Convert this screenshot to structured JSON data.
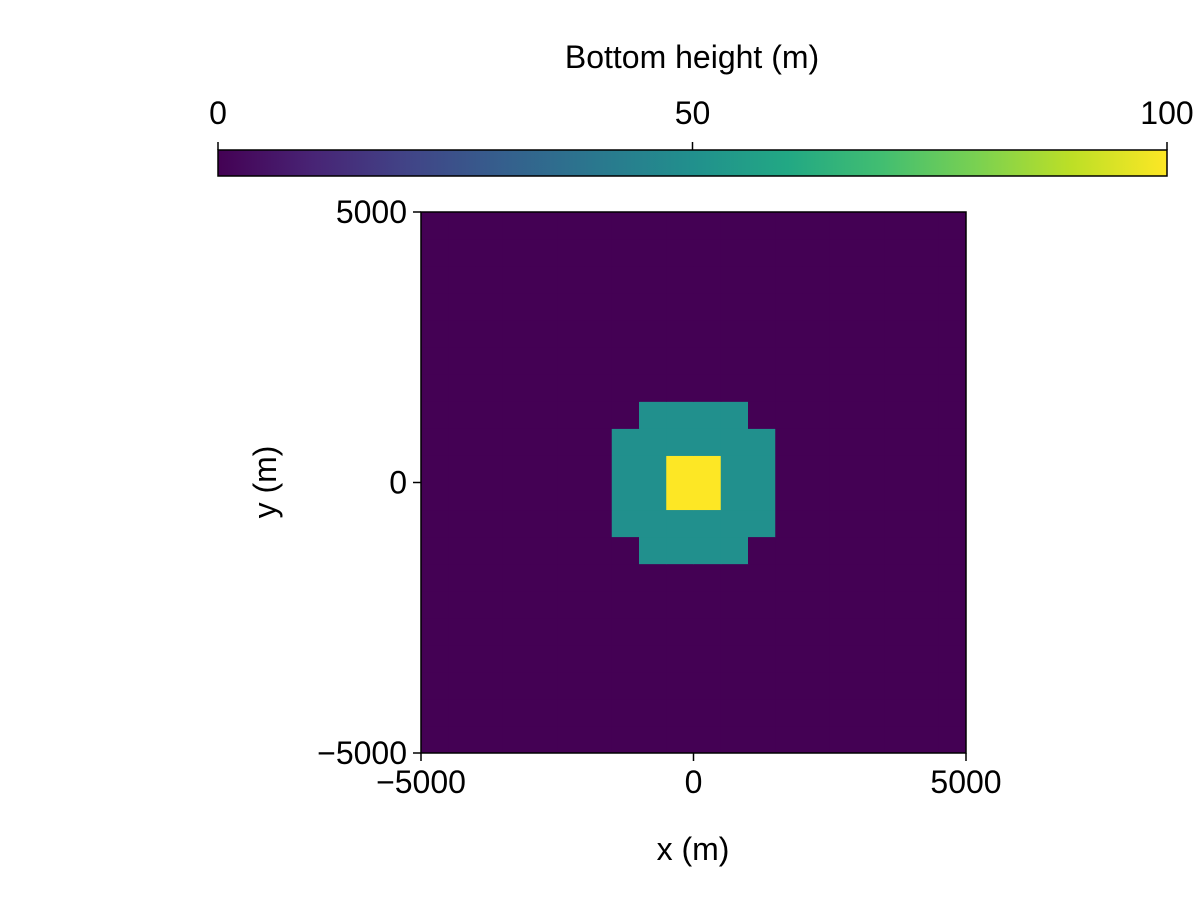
{
  "chart_data": {
    "type": "heatmap",
    "xlabel": "x (m)",
    "ylabel": "y (m)",
    "xlim": [
      -5000,
      5000
    ],
    "ylim": [
      -5000,
      5000
    ],
    "xticks": [
      -5000,
      0,
      5000
    ],
    "yticks": [
      -5000,
      0,
      5000
    ],
    "xtick_labels": [
      "−5000",
      "0",
      "5000"
    ],
    "ytick_labels": [
      "−5000",
      "0",
      "5000"
    ],
    "x_centers": [
      -4750,
      -4250,
      -3750,
      -3250,
      -2750,
      -2250,
      -1750,
      -1250,
      -750,
      -250,
      250,
      750,
      1250,
      1750,
      2250,
      2750,
      3250,
      3750,
      4250,
      4750
    ],
    "y_centers": [
      -4750,
      -4250,
      -3750,
      -3250,
      -2750,
      -2250,
      -1750,
      -1250,
      -750,
      -250,
      250,
      750,
      1250,
      1750,
      2250,
      2750,
      3250,
      3750,
      4250,
      4750
    ],
    "z": [
      [
        0,
        0,
        0,
        0,
        0,
        0,
        0,
        0,
        0,
        0,
        0,
        0,
        0,
        0,
        0,
        0,
        0,
        0,
        0,
        0
      ],
      [
        0,
        0,
        0,
        0,
        0,
        0,
        0,
        0,
        0,
        0,
        0,
        0,
        0,
        0,
        0,
        0,
        0,
        0,
        0,
        0
      ],
      [
        0,
        0,
        0,
        0,
        0,
        0,
        0,
        0,
        0,
        0,
        0,
        0,
        0,
        0,
        0,
        0,
        0,
        0,
        0,
        0
      ],
      [
        0,
        0,
        0,
        0,
        0,
        0,
        0,
        0,
        0,
        0,
        0,
        0,
        0,
        0,
        0,
        0,
        0,
        0,
        0,
        0
      ],
      [
        0,
        0,
        0,
        0,
        0,
        0,
        0,
        0,
        0,
        0,
        0,
        0,
        0,
        0,
        0,
        0,
        0,
        0,
        0,
        0
      ],
      [
        0,
        0,
        0,
        0,
        0,
        0,
        0,
        0,
        0,
        0,
        0,
        0,
        0,
        0,
        0,
        0,
        0,
        0,
        0,
        0
      ],
      [
        0,
        0,
        0,
        0,
        0,
        0,
        0,
        0,
        0,
        0,
        0,
        0,
        0,
        0,
        0,
        0,
        0,
        0,
        0,
        0
      ],
      [
        0,
        0,
        0,
        0,
        0,
        0,
        0,
        0,
        50,
        50,
        50,
        50,
        0,
        0,
        0,
        0,
        0,
        0,
        0,
        0
      ],
      [
        0,
        0,
        0,
        0,
        0,
        0,
        0,
        50,
        50,
        50,
        50,
        50,
        50,
        0,
        0,
        0,
        0,
        0,
        0,
        0
      ],
      [
        0,
        0,
        0,
        0,
        0,
        0,
        0,
        50,
        50,
        100,
        100,
        50,
        50,
        0,
        0,
        0,
        0,
        0,
        0,
        0
      ],
      [
        0,
        0,
        0,
        0,
        0,
        0,
        0,
        50,
        50,
        100,
        100,
        50,
        50,
        0,
        0,
        0,
        0,
        0,
        0,
        0
      ],
      [
        0,
        0,
        0,
        0,
        0,
        0,
        0,
        50,
        50,
        50,
        50,
        50,
        50,
        0,
        0,
        0,
        0,
        0,
        0,
        0
      ],
      [
        0,
        0,
        0,
        0,
        0,
        0,
        0,
        0,
        50,
        50,
        50,
        50,
        0,
        0,
        0,
        0,
        0,
        0,
        0,
        0
      ],
      [
        0,
        0,
        0,
        0,
        0,
        0,
        0,
        0,
        0,
        0,
        0,
        0,
        0,
        0,
        0,
        0,
        0,
        0,
        0,
        0
      ],
      [
        0,
        0,
        0,
        0,
        0,
        0,
        0,
        0,
        0,
        0,
        0,
        0,
        0,
        0,
        0,
        0,
        0,
        0,
        0,
        0
      ],
      [
        0,
        0,
        0,
        0,
        0,
        0,
        0,
        0,
        0,
        0,
        0,
        0,
        0,
        0,
        0,
        0,
        0,
        0,
        0,
        0
      ],
      [
        0,
        0,
        0,
        0,
        0,
        0,
        0,
        0,
        0,
        0,
        0,
        0,
        0,
        0,
        0,
        0,
        0,
        0,
        0,
        0
      ],
      [
        0,
        0,
        0,
        0,
        0,
        0,
        0,
        0,
        0,
        0,
        0,
        0,
        0,
        0,
        0,
        0,
        0,
        0,
        0,
        0
      ],
      [
        0,
        0,
        0,
        0,
        0,
        0,
        0,
        0,
        0,
        0,
        0,
        0,
        0,
        0,
        0,
        0,
        0,
        0,
        0,
        0
      ],
      [
        0,
        0,
        0,
        0,
        0,
        0,
        0,
        0,
        0,
        0,
        0,
        0,
        0,
        0,
        0,
        0,
        0,
        0,
        0,
        0
      ]
    ],
    "colormap": "viridis",
    "colorbar": {
      "label": "Bottom height (m)",
      "range": [
        0,
        100
      ],
      "ticks": [
        0,
        50,
        100
      ],
      "tick_labels": [
        "0",
        "50",
        "100"
      ],
      "placement": "top"
    },
    "value_colors": {
      "0": "#440154",
      "50": "#21908d",
      "100": "#fde725"
    },
    "grid": false
  }
}
